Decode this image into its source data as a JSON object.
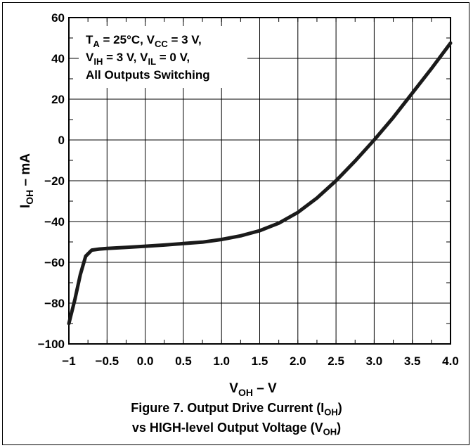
{
  "chart_data": {
    "type": "line",
    "x_range": [
      -1,
      4
    ],
    "y_range": [
      -100,
      60
    ],
    "x_ticks": [
      -1,
      -0.5,
      0.0,
      0.5,
      1.0,
      1.5,
      2.0,
      2.5,
      3.0,
      3.5,
      4.0
    ],
    "x_tick_labels": [
      "−1",
      "−0.5",
      "0.0",
      "0.5",
      "1.0",
      "1.5",
      "2.0",
      "2.5",
      "3.0",
      "3.5",
      "4.0"
    ],
    "y_ticks": [
      60,
      40,
      20,
      0,
      -20,
      -40,
      -60,
      -80,
      -100
    ],
    "y_tick_labels": [
      "60",
      "40",
      "20",
      "0",
      "−20",
      "−40",
      "−60",
      "−80",
      "−100"
    ],
    "x_minor_step": 0.25,
    "y_minor_step": 10,
    "grid": true,
    "xlabel": {
      "main": "V",
      "sub": "OH",
      "unit": " – V"
    },
    "ylabel": {
      "main": "I",
      "sub": "OH",
      "unit": " – mA"
    },
    "annotation": {
      "line1": {
        "a": "T",
        "a_sub": "A",
        "b": " = 25°C, V",
        "b_sub": "CC",
        "c": " = 3 V,"
      },
      "line2": {
        "a": "V",
        "a_sub": "IH",
        "b": " = 3 V, V",
        "b_sub": "IL",
        "c": " = 0 V,"
      },
      "line3": "All Outputs Switching"
    },
    "series": [
      {
        "color": "#1a1a1a",
        "x": [
          -1.0,
          -0.92,
          -0.85,
          -0.78,
          -0.7,
          -0.6,
          -0.5,
          -0.25,
          0.0,
          0.25,
          0.5,
          0.75,
          1.0,
          1.25,
          1.5,
          1.75,
          2.0,
          2.25,
          2.5,
          2.75,
          3.0,
          3.25,
          3.5,
          3.75,
          4.0
        ],
        "y": [
          -90,
          -78,
          -66,
          -57,
          -54,
          -53.5,
          -53.2,
          -52.7,
          -52.1,
          -51.5,
          -50.8,
          -50.1,
          -48.8,
          -47.0,
          -44.5,
          -40.8,
          -35.5,
          -28.5,
          -20.0,
          -10.3,
          0.0,
          11.0,
          23.0,
          35.0,
          47.5
        ]
      }
    ]
  },
  "caption": {
    "line1_text": "Figure 7. Output Drive Current (I",
    "line1_sub": "OH",
    "line1_end": ")",
    "line2_text": "vs HIGH-level Output Voltage (V",
    "line2_sub": "OH",
    "line2_end": ")"
  }
}
